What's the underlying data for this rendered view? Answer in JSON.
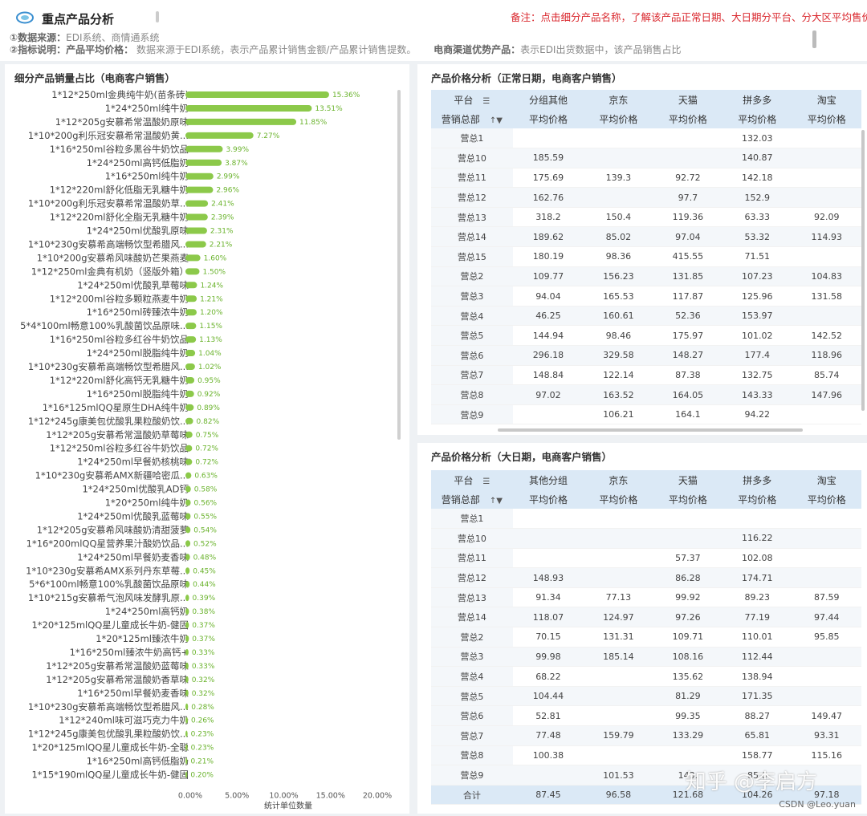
{
  "header": {
    "title": "重点产品分析",
    "remark": "备注：点击细分产品名称，了解该产品正常日期、大日期分平台、分大区平均售价",
    "line1_label": "①数据来源：",
    "line1_text": "EDI系统、商情通系统",
    "line2_label": "②指标说明：",
    "line2_metric": "产品平均价格：",
    "line2_text": "数据来源于EDI系统，表示产品累计销售金额/产品累计销售提数。",
    "line2_metric2": "电商渠道优势产品：",
    "line2_text2": "表示EDI出货数据中，该产品销售占比"
  },
  "chart_panel": {
    "title": "细分产品销量占比（电商客户销售）"
  },
  "chart_data": {
    "type": "bar",
    "orientation": "horizontal",
    "title": "细分产品销量占比（电商客户销售）",
    "xlabel": "统计单位数量",
    "xlim": [
      0,
      20
    ],
    "xticks": [
      "0.00%",
      "5.00%",
      "10.00%",
      "15.00%",
      "20.00%"
    ],
    "bar_color": "#8cc94a",
    "categories": [
      "1*12*250ml金典纯牛奶(苗条砖)",
      "1*24*250ml纯牛奶",
      "1*12*205g安慕希常温酸奶原味",
      "1*10*200g利乐冠安慕希常温酸奶黄...",
      "1*16*250ml谷粒多黑谷牛奶饮品",
      "1*24*250ml高钙低脂奶",
      "1*16*250ml纯牛奶",
      "1*12*220ml舒化低脂无乳糖牛奶",
      "1*10*200g利乐冠安慕希常温酸奶草...",
      "1*12*220ml舒化全脂无乳糖牛奶",
      "1*24*250ml优酸乳原味",
      "1*10*230g安慕希高端畅饮型希腊风...",
      "1*10*200g安慕希风味酸奶芒果燕麦",
      "1*12*250ml金典有机奶（竖版外箱）",
      "1*24*250ml优酸乳草莓味",
      "1*12*200ml谷粒多颗粒燕麦牛奶",
      "1*16*250ml砖臻浓牛奶",
      "5*4*100ml畅意100%乳酸菌饮品原味...",
      "1*16*250ml谷粒多红谷牛奶饮品",
      "1*24*250ml脱脂纯牛奶",
      "1*10*230g安慕希高端畅饮型希腊风...",
      "1*12*220ml舒化高钙无乳糖牛奶",
      "1*16*250ml脱脂纯牛奶",
      "1*16*125mlQQ星原生DHA纯牛奶",
      "1*12*245g康美包优酸乳果粒酸奶饮...",
      "1*12*205g安慕希常温酸奶草莓味",
      "1*12*250ml谷粒多红谷牛奶饮品",
      "1*24*250ml早餐奶核桃味",
      "1*10*230g安慕希AMX新疆哈密瓜...",
      "1*24*250ml优酸乳AD钙",
      "1*20*250ml纯牛奶",
      "1*24*250ml优酸乳蓝莓味",
      "1*12*205g安慕希风味酸奶清甜菠萝",
      "1*16*200mlQQ星营养果汁酸奶饮品...",
      "1*24*250ml早餐奶麦香味",
      "1*10*230g安慕希AMX系列丹东草莓...",
      "5*6*100ml畅意100%乳酸菌饮品原味",
      "1*10*215g安慕希气泡风味发酵乳原...",
      "1*24*250ml高钙奶",
      "1*20*125mlQQ星儿童成长牛奶-健固",
      "1*20*125ml臻浓牛奶",
      "1*16*250ml臻浓牛奶高钙+",
      "1*12*205g安慕希常温酸奶蓝莓味",
      "1*12*205g安慕希常温酸奶香草味",
      "1*16*250ml早餐奶麦香味",
      "1*10*230g安慕希高端畅饮型希腊风...",
      "1*12*240ml味可滋巧克力牛奶",
      "1*12*245g康美包优酸乳果粒酸奶饮...",
      "1*20*125mlQQ星儿童成长牛奶-全聪",
      "1*16*250ml高钙低脂奶",
      "1*15*190mlQQ星儿童成长牛奶-健固"
    ],
    "values": [
      15.36,
      13.51,
      11.85,
      7.27,
      3.99,
      3.87,
      2.99,
      2.96,
      2.41,
      2.39,
      2.31,
      2.21,
      1.6,
      1.5,
      1.24,
      1.21,
      1.2,
      1.15,
      1.13,
      1.04,
      1.02,
      0.95,
      0.92,
      0.89,
      0.82,
      0.75,
      0.72,
      0.72,
      0.63,
      0.58,
      0.56,
      0.55,
      0.54,
      0.52,
      0.48,
      0.45,
      0.44,
      0.39,
      0.38,
      0.37,
      0.37,
      0.33,
      0.33,
      0.32,
      0.32,
      0.28,
      0.26,
      0.23,
      0.23,
      0.21,
      0.2
    ],
    "labels": [
      "15.36%",
      "13.51%",
      "11.85%",
      "7.27%",
      "3.99%",
      "3.87%",
      "2.99%",
      "2.96%",
      "2.41%",
      "2.39%",
      "2.31%",
      "2.21%",
      "1.60%",
      "1.50%",
      "1.24%",
      "1.21%",
      "1.20%",
      "1.15%",
      "1.13%",
      "1.04%",
      "1.02%",
      "0.95%",
      "0.92%",
      "0.89%",
      "0.82%",
      "0.75%",
      "0.72%",
      "0.72%",
      "0.63%",
      "0.58%",
      "0.56%",
      "0.55%",
      "0.54%",
      "0.52%",
      "0.48%",
      "0.45%",
      "0.44%",
      "0.39%",
      "0.38%",
      "0.37%",
      "0.37%",
      "0.33%",
      "0.33%",
      "0.32%",
      "0.32%",
      "0.28%",
      "0.26%",
      "0.23%",
      "0.23%",
      "0.21%",
      "0.20%"
    ]
  },
  "table1": {
    "title": "产品价格分析（正常日期，电商客户销售）",
    "row_header_top": "平台",
    "row_header_bottom": "营销总部",
    "platforms": [
      "分组其他",
      "京东",
      "天猫",
      "拼多多",
      "淘宝"
    ],
    "metric": "平均价格",
    "rows": [
      [
        "营总1",
        "",
        "",
        "",
        "132.03",
        ""
      ],
      [
        "营总10",
        "185.59",
        "",
        "",
        "140.87",
        ""
      ],
      [
        "营总11",
        "175.69",
        "139.3",
        "92.72",
        "142.18",
        ""
      ],
      [
        "营总12",
        "162.76",
        "",
        "97.7",
        "152.9",
        ""
      ],
      [
        "营总13",
        "318.2",
        "150.4",
        "119.36",
        "63.33",
        "92.09"
      ],
      [
        "营总14",
        "189.62",
        "85.02",
        "97.04",
        "53.32",
        "114.93"
      ],
      [
        "营总15",
        "180.19",
        "98.36",
        "415.55",
        "71.51",
        ""
      ],
      [
        "营总2",
        "109.77",
        "156.23",
        "131.85",
        "107.23",
        "104.83"
      ],
      [
        "营总3",
        "94.04",
        "165.53",
        "117.87",
        "125.96",
        "131.58"
      ],
      [
        "营总4",
        "46.25",
        "160.61",
        "52.36",
        "153.97",
        ""
      ],
      [
        "营总5",
        "144.94",
        "98.46",
        "175.97",
        "101.02",
        "142.52"
      ],
      [
        "营总6",
        "296.18",
        "329.58",
        "148.27",
        "177.4",
        "118.96"
      ],
      [
        "营总7",
        "148.84",
        "122.14",
        "87.38",
        "132.75",
        "85.74"
      ],
      [
        "营总8",
        "97.02",
        "163.52",
        "164.05",
        "143.33",
        "147.96"
      ],
      [
        "营总9",
        "",
        "106.21",
        "164.1",
        "94.22",
        ""
      ]
    ]
  },
  "table2": {
    "title": "产品价格分析（大日期，电商客户销售）",
    "row_header_top": "平台",
    "row_header_bottom": "营销总部",
    "platforms": [
      "其他分组",
      "京东",
      "天猫",
      "拼多多",
      "淘宝"
    ],
    "metric": "平均价格",
    "rows": [
      [
        "营总1",
        "",
        "",
        "",
        "",
        ""
      ],
      [
        "营总10",
        "",
        "",
        "",
        "116.22",
        ""
      ],
      [
        "营总11",
        "",
        "",
        "57.37",
        "102.08",
        ""
      ],
      [
        "营总12",
        "148.93",
        "",
        "86.28",
        "174.71",
        ""
      ],
      [
        "营总13",
        "91.34",
        "77.13",
        "99.92",
        "89.23",
        "87.59"
      ],
      [
        "营总14",
        "118.07",
        "124.97",
        "97.26",
        "77.19",
        "97.44"
      ],
      [
        "营总2",
        "70.15",
        "131.31",
        "109.71",
        "110.01",
        "95.85"
      ],
      [
        "营总3",
        "99.98",
        "185.14",
        "108.16",
        "112.44",
        ""
      ],
      [
        "营总4",
        "68.22",
        "",
        "135.62",
        "138.94",
        ""
      ],
      [
        "营总5",
        "104.44",
        "",
        "81.29",
        "171.35",
        ""
      ],
      [
        "营总6",
        "52.81",
        "",
        "99.35",
        "88.27",
        "149.47"
      ],
      [
        "营总7",
        "77.48",
        "159.79",
        "133.29",
        "65.81",
        "93.31"
      ],
      [
        "营总8",
        "100.38",
        "",
        "",
        "158.77",
        "115.16"
      ],
      [
        "营总9",
        "",
        "101.53",
        "143.",
        "85.6",
        ""
      ]
    ],
    "total": [
      "合计",
      "87.45",
      "96.58",
      "121.68",
      "104.26",
      "97.18"
    ]
  },
  "watermark": "知乎 @李启方",
  "credit": "CSDN @Leo.yuan",
  "colors": {
    "bar": "#8cc94a",
    "header_blue": "#dbe9f6",
    "remark_red": "#d9262c"
  }
}
